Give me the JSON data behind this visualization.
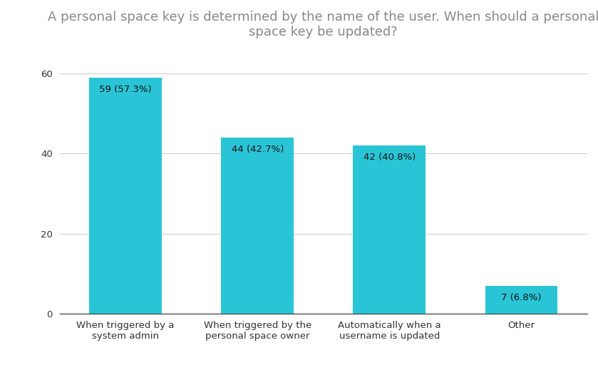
{
  "title": "A personal space key is determined by the name of the user. When should a personal\nspace key be updated?",
  "categories": [
    "When triggered by a\nsystem admin",
    "When triggered by the\npersonal space owner",
    "Automatically when a\nusername is updated",
    "Other"
  ],
  "values": [
    59,
    44,
    42,
    7
  ],
  "labels": [
    "59 (57.3%)",
    "44 (42.7%)",
    "42 (40.8%)",
    "7 (6.8%)"
  ],
  "bar_color": "#29C5D6",
  "ylim": [
    0,
    65
  ],
  "yticks": [
    0,
    20,
    40,
    60
  ],
  "title_fontsize": 13,
  "label_fontsize": 9.5,
  "tick_fontsize": 9.5,
  "background_color": "#ffffff",
  "title_color": "#888888",
  "ytick_color": "#333333",
  "xtick_color": "#333333",
  "grid_color": "#d0d0d0",
  "label_color": "#111111",
  "bar_width": 0.55
}
